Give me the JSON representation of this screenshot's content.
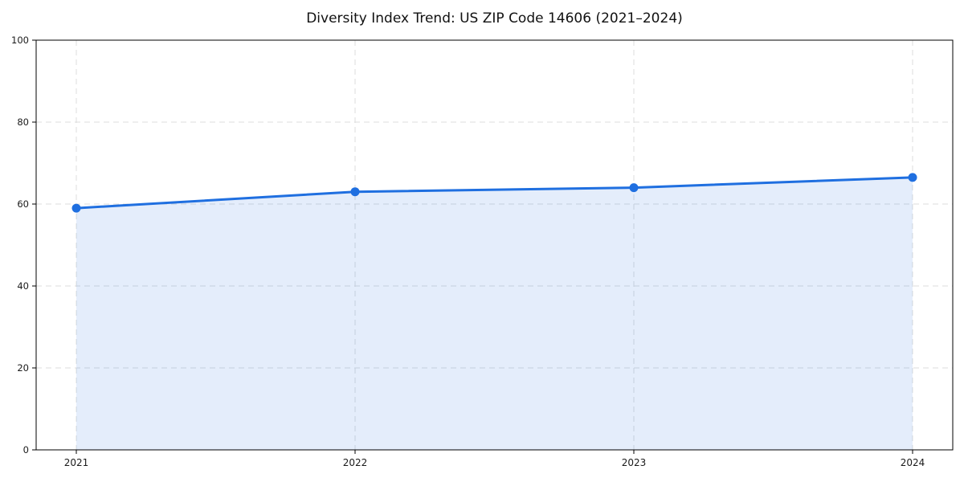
{
  "chart_data": {
    "type": "area",
    "title": "Diversity Index Trend: US ZIP Code 14606 (2021–2024)",
    "series_name": "Diversity Index",
    "categories": [
      "2021",
      "2022",
      "2023",
      "2024"
    ],
    "values": [
      59,
      63,
      64,
      66.5
    ],
    "xlabel": "",
    "ylabel": "",
    "ylim": [
      0,
      100
    ],
    "yticks": [
      0,
      20,
      40,
      60,
      80,
      100
    ],
    "grid": "dashed",
    "legend": "none",
    "marker": "circle",
    "colors": {
      "line": "#1f6fe0",
      "marker": "#1f6fe0",
      "fill": "rgba(31, 111, 224, 0.12)",
      "grid": "#dcdcdc",
      "spine": "#000000",
      "tick_text": "#1a1a1a",
      "background": "#ffffff"
    }
  }
}
